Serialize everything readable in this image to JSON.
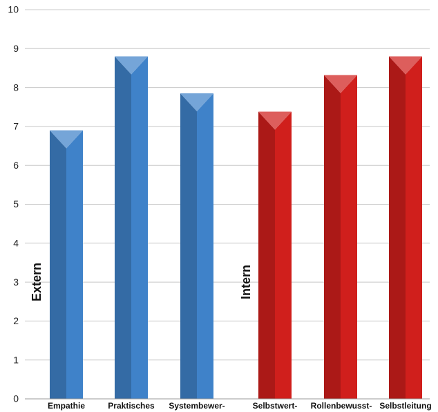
{
  "chart_data": {
    "type": "bar",
    "categories": [
      "Empathie",
      "Praktisches",
      "Systembewer-",
      "Selbstwert-",
      "Rollenbewusst-",
      "Selbstleitung"
    ],
    "values": [
      6.9,
      8.8,
      7.85,
      7.38,
      8.32,
      8.8
    ],
    "groups": [
      {
        "label": "Extern",
        "categories": [
          "Empathie",
          "Praktisches",
          "Systembewer-"
        ],
        "color": "#3f82c9"
      },
      {
        "label": "Intern",
        "categories": [
          "Selbstwert-",
          "Rollenbewusst-",
          "Selbstleitung"
        ],
        "color": "#d01f1c"
      }
    ],
    "ylim": [
      0,
      10
    ],
    "yticks": [
      "0",
      "1",
      "2",
      "3",
      "4",
      "5",
      "6",
      "7",
      "8",
      "9",
      "10"
    ],
    "grid": true,
    "legend": "none"
  }
}
